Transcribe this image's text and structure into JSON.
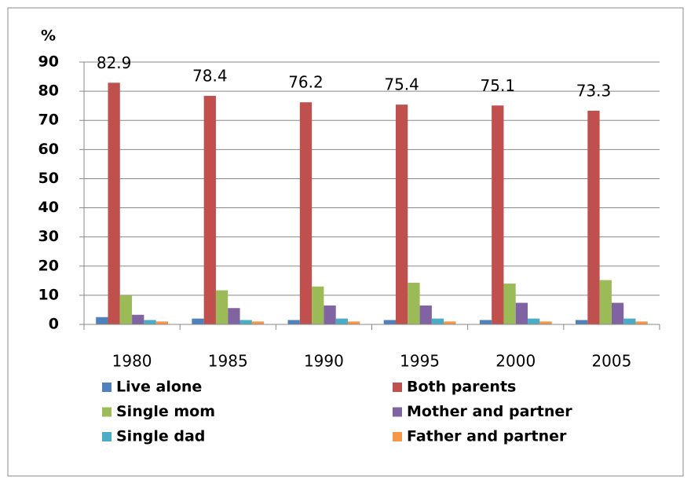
{
  "chart_data": {
    "type": "bar",
    "y_label": "%",
    "categories": [
      "1980",
      "1985",
      "1990",
      "1995",
      "2000",
      "2005"
    ],
    "series": [
      {
        "name": "Live alone",
        "color": "#4F81BD",
        "values": [
          2.5,
          2,
          1.5,
          1.5,
          1.5,
          1.5
        ]
      },
      {
        "name": "Both parents",
        "color": "#C0504D",
        "values": [
          82.9,
          78.4,
          76.2,
          75.4,
          75.1,
          73.3
        ],
        "show_labels": true
      },
      {
        "name": "Single mom",
        "color": "#9BBB59",
        "values": [
          10,
          11.7,
          13,
          14.3,
          14,
          15.2
        ]
      },
      {
        "name": "Mother and partner",
        "color": "#8064A2",
        "values": [
          3.3,
          5.6,
          6.5,
          6.5,
          7.4,
          7.4
        ]
      },
      {
        "name": "Single dad",
        "color": "#4BACC6",
        "values": [
          1.5,
          1.5,
          2,
          2,
          2,
          2
        ]
      },
      {
        "name": "Father and partner",
        "color": "#F79646",
        "values": [
          1,
          1,
          1,
          1,
          1,
          1
        ]
      }
    ],
    "ylim": [
      0,
      90
    ],
    "yticks": [
      0,
      10,
      20,
      30,
      40,
      50,
      60,
      70,
      80,
      90
    ],
    "grid": true
  }
}
